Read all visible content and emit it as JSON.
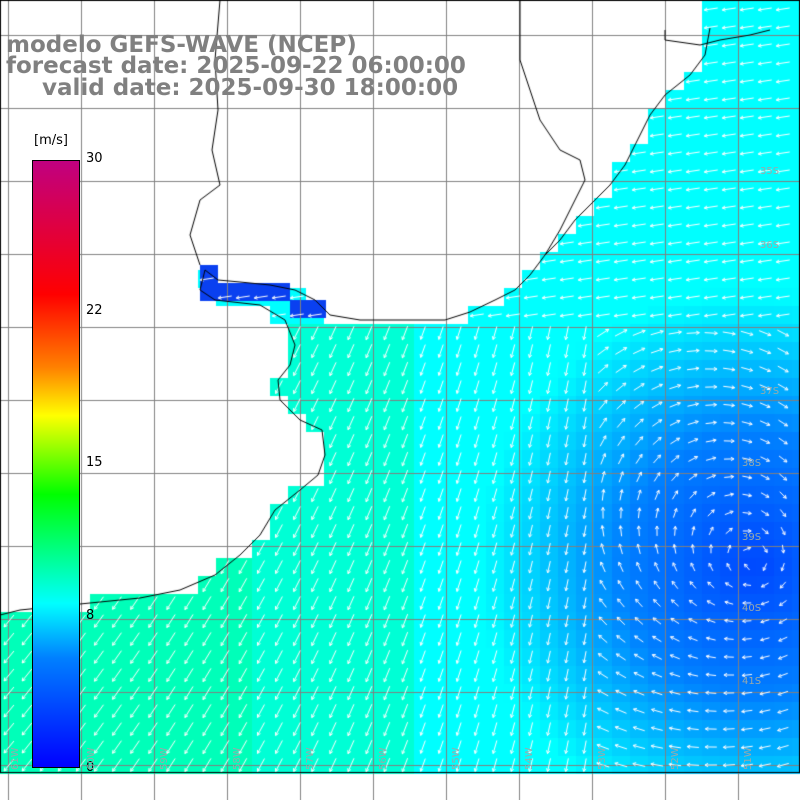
{
  "title": {
    "model": "modelo GEFS-WAVE (NCEP)",
    "forecast": "forecast date: 2025-09-22 06:00:00",
    "valid": "valid date: 2025-09-30 18:00:00"
  },
  "colorbar": {
    "unit": "[m/s]",
    "ticks": [
      {
        "label": "30",
        "value": 30
      },
      {
        "label": "22",
        "value": 22
      },
      {
        "label": "15",
        "value": 15
      },
      {
        "label": "8",
        "value": 8
      },
      {
        "label": "0",
        "value": 0
      }
    ],
    "colors": [
      "#0000ff",
      "#0080ff",
      "#00ffff",
      "#00ff00",
      "#ffff00",
      "#ff8000",
      "#ff0000",
      "#c00080"
    ]
  },
  "lat_labels": [
    {
      "label": "35S",
      "lat": -35
    },
    {
      "label": "36S",
      "lat": -36
    },
    {
      "label": "37S",
      "lat": -37
    },
    {
      "label": "38S",
      "lat": -38
    },
    {
      "label": "39S",
      "lat": -39
    },
    {
      "label": "40S",
      "lat": -40
    },
    {
      "label": "41S",
      "lat": -41
    }
  ],
  "lon_labels": [
    {
      "label": "61W",
      "lon": -61
    },
    {
      "label": "60W",
      "lon": -60
    },
    {
      "label": "59W",
      "lon": -59
    },
    {
      "label": "58W",
      "lon": -58
    },
    {
      "label": "57W",
      "lon": -57
    },
    {
      "label": "56W",
      "lon": -56
    },
    {
      "label": "55W",
      "lon": -55
    },
    {
      "label": "54W",
      "lon": -54
    },
    {
      "label": "53W",
      "lon": -53
    },
    {
      "label": "52W",
      "lon": -52
    },
    {
      "label": "51W",
      "lon": -51
    },
    {
      "label": "50W",
      "lon": -50
    }
  ]
}
